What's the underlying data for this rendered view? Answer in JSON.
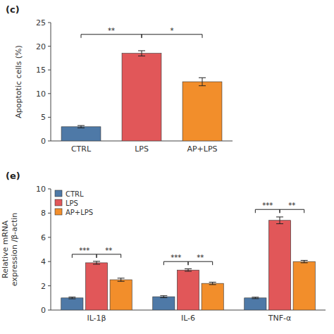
{
  "chart_data": [
    {
      "type": "bar",
      "title": "(c)",
      "categories": [
        "CTRL",
        "LPS",
        "AP+LPS"
      ],
      "values": [
        3.0,
        18.5,
        12.5
      ],
      "errors": [
        0.25,
        0.55,
        0.85
      ],
      "colors": [
        "#4e79a7",
        "#e15759",
        "#f28e2b"
      ],
      "ylabel": "Apoptotic cells (%)",
      "ylim": [
        0,
        25
      ],
      "yticks": [
        0,
        5,
        10,
        15,
        20,
        25
      ],
      "grid": false,
      "annotations": [
        {
          "text": "**",
          "from": "CTRL",
          "to": "LPS",
          "y": 22.5
        },
        {
          "text": "*",
          "from": "LPS",
          "to": "AP+LPS",
          "y": 22.5
        }
      ]
    },
    {
      "type": "bar",
      "title": "(e)",
      "categories": [
        "IL-1β",
        "IL-6",
        "TNF-α"
      ],
      "series": [
        {
          "name": "CTRL",
          "color": "#4e79a7",
          "values": [
            1.0,
            1.1,
            1.0
          ],
          "errors": [
            0.07,
            0.08,
            0.06
          ]
        },
        {
          "name": "LPS",
          "color": "#e15759",
          "values": [
            3.9,
            3.3,
            7.4
          ],
          "errors": [
            0.12,
            0.1,
            0.28
          ]
        },
        {
          "name": "AP+LPS",
          "color": "#f28e2b",
          "values": [
            2.5,
            2.2,
            4.0
          ],
          "errors": [
            0.13,
            0.1,
            0.1
          ]
        }
      ],
      "ylabel": "Relative mRNA\nexpression /β-actin",
      "ylim": [
        0,
        10
      ],
      "yticks": [
        0,
        2,
        4,
        6,
        8,
        10
      ],
      "grid": false,
      "legend": "upper left",
      "annotations": [
        {
          "text": "***",
          "category": "IL-1β",
          "from": "CTRL",
          "to": "LPS",
          "y": 4.6
        },
        {
          "text": "**",
          "category": "IL-1β",
          "from": "LPS",
          "to": "AP+LPS",
          "y": 4.6
        },
        {
          "text": "***",
          "category": "IL-6",
          "from": "CTRL",
          "to": "LPS",
          "y": 4.0
        },
        {
          "text": "**",
          "category": "IL-6",
          "from": "LPS",
          "to": "AP+LPS",
          "y": 4.0
        },
        {
          "text": "***",
          "category": "TNF-α",
          "from": "CTRL",
          "to": "LPS",
          "y": 8.3
        },
        {
          "text": "**",
          "category": "TNF-α",
          "from": "LPS",
          "to": "AP+LPS",
          "y": 8.3
        }
      ]
    }
  ]
}
